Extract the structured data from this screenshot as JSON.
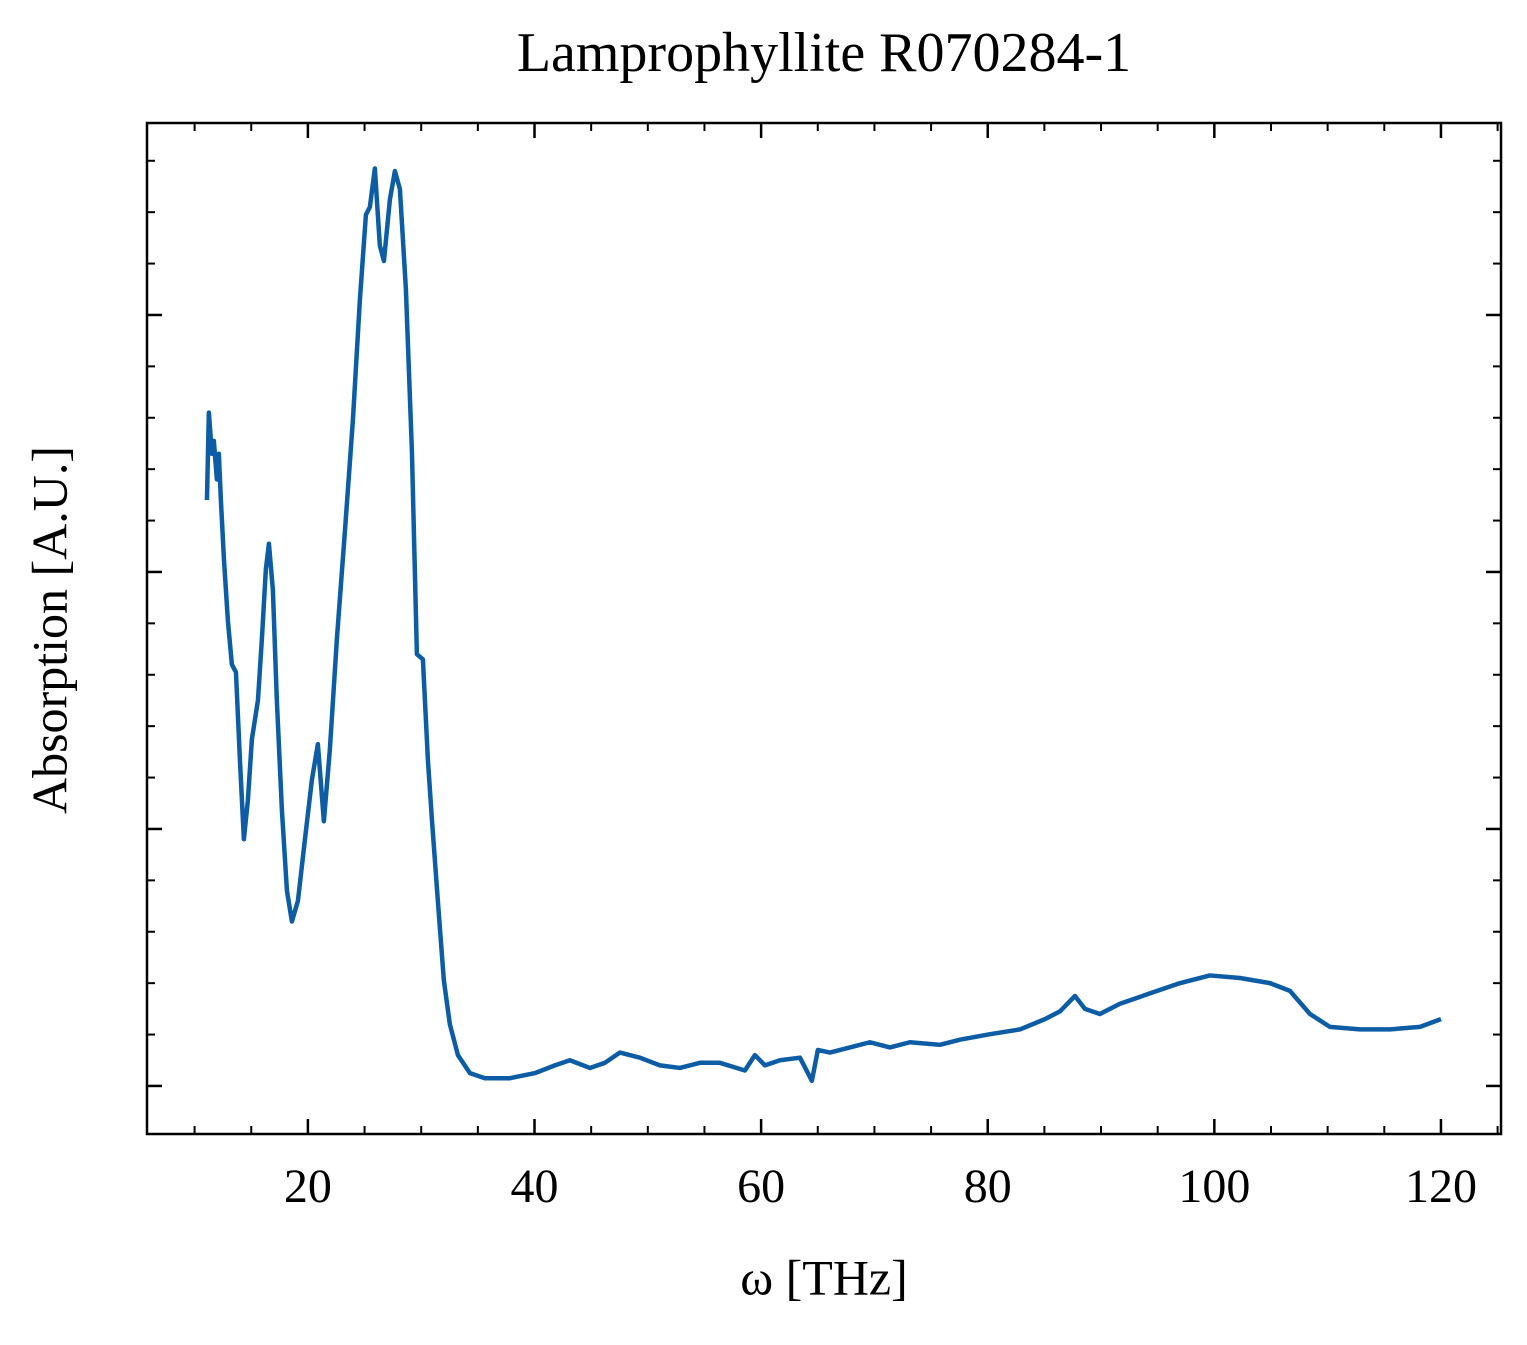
{
  "chart_data": {
    "type": "line",
    "title": "Lamprophyllite R070284-1",
    "xlabel": "ω [THz]",
    "ylabel": "Absorption [A.U.]",
    "xlim": [
      5.8,
      125.3
    ],
    "ylim": [
      -0.187,
      3.747
    ],
    "xticks": [
      20,
      40,
      60,
      80,
      100,
      120
    ],
    "xminorticks": [
      10,
      15,
      25,
      30,
      35,
      45,
      50,
      55,
      65,
      70,
      75,
      85,
      90,
      95,
      105,
      110,
      115,
      125
    ],
    "yticks": [
      0,
      1,
      2,
      3
    ],
    "yminorticks": [
      0.2,
      0.4,
      0.6,
      0.8,
      1.2,
      1.4,
      1.6,
      1.8,
      2.2,
      2.4,
      2.6,
      2.8,
      3.2,
      3.4,
      3.6
    ],
    "series": [
      {
        "color": "#0C5DA5",
        "x": [
          11.09,
          11.26,
          11.53,
          11.7,
          11.97,
          12.14,
          12.32,
          12.59,
          12.94,
          13.29,
          13.65,
          14.0,
          14.35,
          14.7,
          15.06,
          15.59,
          15.94,
          16.29,
          16.56,
          16.91,
          17.26,
          17.71,
          18.15,
          18.59,
          19.12,
          19.74,
          20.35,
          20.88,
          21.41,
          21.94,
          22.56,
          23.27,
          23.97,
          24.59,
          25.12,
          25.47,
          25.91,
          26.35,
          26.71,
          27.24,
          27.68,
          28.12,
          28.65,
          29.18,
          29.62,
          30.15,
          30.59,
          30.94,
          31.47,
          32.0,
          32.53,
          33.24,
          34.3,
          35.62,
          37.83,
          40.04,
          41.8,
          43.12,
          44.89,
          46.21,
          47.54,
          49.3,
          51.07,
          52.83,
          54.6,
          56.36,
          58.57,
          59.45,
          60.34,
          61.66,
          63.43,
          64.48,
          65.01,
          66.07,
          67.84,
          69.6,
          71.37,
          73.13,
          75.78,
          77.55,
          80.02,
          82.84,
          85.05,
          86.37,
          87.7,
          88.58,
          89.9,
          91.67,
          94.31,
          96.96,
          99.61,
          102.26,
          104.91,
          106.67,
          108.44,
          110.2,
          112.85,
          115.5,
          118.15,
          120.0
        ],
        "values": [
          2.28,
          2.62,
          2.46,
          2.51,
          2.36,
          2.46,
          2.28,
          2.05,
          1.81,
          1.64,
          1.61,
          1.27,
          0.96,
          1.11,
          1.35,
          1.5,
          1.74,
          2.01,
          2.11,
          1.93,
          1.5,
          1.07,
          0.76,
          0.64,
          0.72,
          0.96,
          1.19,
          1.33,
          1.03,
          1.31,
          1.74,
          2.16,
          2.59,
          3.06,
          3.39,
          3.42,
          3.57,
          3.27,
          3.21,
          3.45,
          3.56,
          3.49,
          3.1,
          2.47,
          1.68,
          1.66,
          1.27,
          1.04,
          0.72,
          0.41,
          0.24,
          0.12,
          0.05,
          0.03,
          0.03,
          0.05,
          0.08,
          0.1,
          0.07,
          0.09,
          0.13,
          0.11,
          0.08,
          0.07,
          0.09,
          0.09,
          0.06,
          0.12,
          0.08,
          0.1,
          0.11,
          0.02,
          0.14,
          0.13,
          0.15,
          0.17,
          0.15,
          0.17,
          0.16,
          0.18,
          0.2,
          0.22,
          0.26,
          0.29,
          0.35,
          0.3,
          0.28,
          0.32,
          0.36,
          0.4,
          0.43,
          0.42,
          0.4,
          0.37,
          0.28,
          0.23,
          0.22,
          0.22,
          0.23,
          0.26
        ]
      }
    ]
  }
}
